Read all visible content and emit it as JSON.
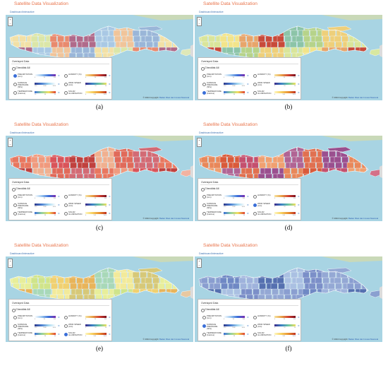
{
  "site_title": "Satellite Data Visualization",
  "nav": [
    "Dashboard",
    "Interactive"
  ],
  "zoom_in": "+",
  "zoom_out": "−",
  "panel_title": "Overlayed Data",
  "checklist_all": "Checklist All",
  "copyright_prefix": "© 2024 Copyright: ",
  "copyright_org": "Badan Riset dan Inovasi Nasional",
  "variables": [
    {
      "name": "PRECIPITATION",
      "unit": "(mm)",
      "ticks": [
        "0",
        "50",
        "100"
      ],
      "gradient": [
        "#ffffff",
        "#9ec9f0",
        "#3b6fd8",
        "#7a2fb0"
      ]
    },
    {
      "name": "HUMIDITY (%)",
      "unit": "",
      "ticks": [
        "0",
        "50",
        "100"
      ],
      "gradient": [
        "#f7e3a0",
        "#e8a34a",
        "#d04030",
        "#7b1020"
      ]
    },
    {
      "name": "SURFACE PRESSURE",
      "unit": "(hPa)",
      "ticks": [
        "950",
        "1000",
        "1050"
      ],
      "gradient": [
        "#2e3a8c",
        "#4a7fd0",
        "#a6d8f0",
        "#ffffff"
      ]
    },
    {
      "name": "WIND SPEED",
      "unit": "(m/s)",
      "ticks": [
        "0",
        "10",
        "20"
      ],
      "gradient": [
        "#3a2a8a",
        "#3b82c4",
        "#6cc7a0",
        "#f0e060"
      ]
    },
    {
      "name": "TEMPERATURE",
      "unit": "(Celcius)",
      "ticks": [
        "20",
        "30",
        "40"
      ],
      "gradient": [
        "#3b6fd8",
        "#90d0a0",
        "#f0e060",
        "#e04030"
      ]
    },
    {
      "name": "SOLAR ILLUMINATION",
      "unit": "",
      "ticks": [
        "0",
        "500",
        "1000"
      ],
      "gradient": [
        "#fff7c0",
        "#f7d060",
        "#e89030",
        "#c03020"
      ]
    }
  ],
  "panels": [
    {
      "caption": "(a)",
      "selected": 0,
      "island": [
        "#f2e0a6",
        "#dbe6a8",
        "#e88a6e",
        "#b06a8a",
        "#a9c8e4",
        "#f0c49a",
        "#9ab6d8"
      ],
      "bali": "#dfe8b8"
    },
    {
      "caption": "(b)",
      "selected": 4,
      "island": [
        "#d9e59a",
        "#f2e48a",
        "#e7a56a",
        "#c84a3a",
        "#8cc4a8",
        "#b6d38a",
        "#eecf7a"
      ],
      "bali": "#d8e8a0"
    },
    {
      "caption": "(c)",
      "selected": -1,
      "island": [
        "#e8775f",
        "#f09a7e",
        "#d9545a",
        "#c0413e",
        "#f0b090",
        "#e06a5a",
        "#d26a74"
      ],
      "bali": "#f2b2a0"
    },
    {
      "caption": "(d)",
      "selected": 3,
      "island": [
        "#e8885a",
        "#d95a3a",
        "#c4506e",
        "#f0a070",
        "#b06494",
        "#e07050",
        "#9a4f8e"
      ],
      "bali": "#d47088"
    },
    {
      "caption": "(e)",
      "selected": 5,
      "island": [
        "#e7ee9a",
        "#cfe48a",
        "#f0d070",
        "#e8b45a",
        "#a8d8b8",
        "#f2ea9a",
        "#d6c878"
      ],
      "bali": "#e8c8a0"
    },
    {
      "caption": "(f)",
      "selected": 2,
      "island": [
        "#8a9ed0",
        "#6f88c4",
        "#9fb3dc",
        "#5570b0",
        "#aac0e2",
        "#7b8fc8",
        "#94a8d4"
      ],
      "bali": "#8aa0d0"
    }
  ]
}
